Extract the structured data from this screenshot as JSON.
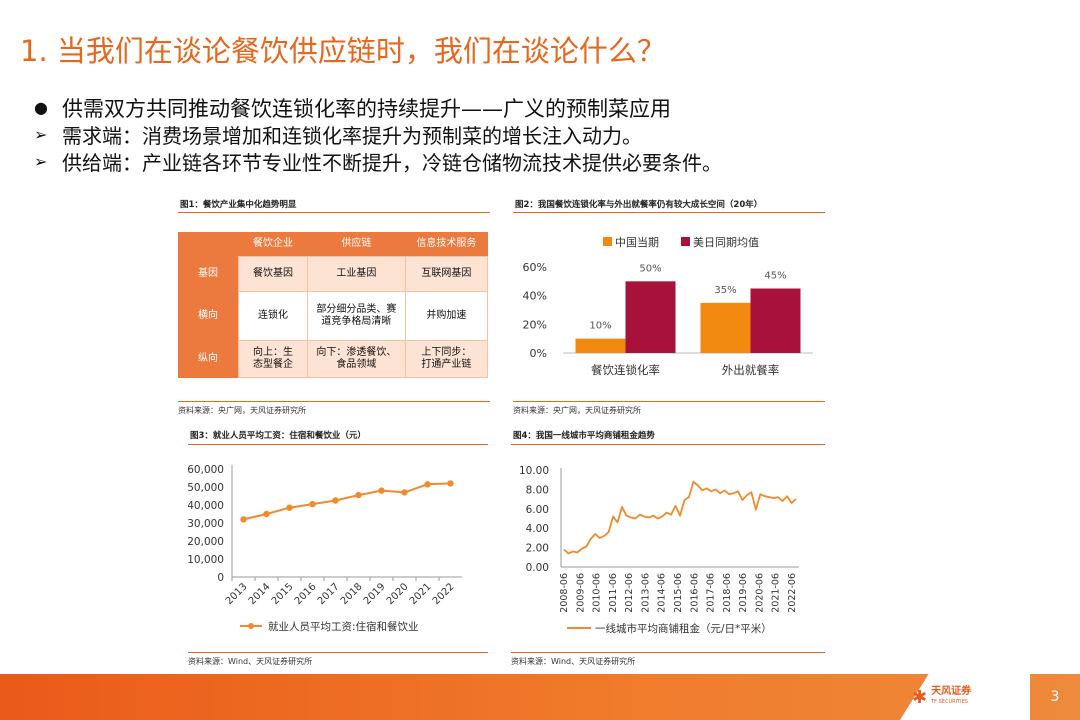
{
  "slide": {
    "title": "1. 当我们在谈论餐饮供应链时，我们在谈论什么？",
    "bullets": [
      {
        "mark": "●",
        "text": "供需双方共同推动餐饮连锁化率的持续提升——广义的预制菜应用"
      },
      {
        "mark": "➢",
        "text": "需求端：消费场景增加和连锁化率提升为预制菜的增长注入动力。"
      },
      {
        "mark": "➢",
        "text": "供给端：产业链各环节专业性不断提升，冷链仓储物流技术提供必要条件。"
      }
    ],
    "page_number": "3"
  },
  "fig1": {
    "title": "图1：餐饮产业集中化趋势明显",
    "source": "资料来源：央广网，天风证券研究所",
    "headers": [
      "",
      "餐饮企业",
      "供应链",
      "信息技术服务"
    ],
    "rows": [
      {
        "label": "基因",
        "cells": [
          "餐饮基因",
          "工业基因",
          "互联网基因"
        ]
      },
      {
        "label": "横向",
        "cells": [
          "连锁化",
          "部分细分品类、赛道竞争格局清晰",
          "并购加速"
        ]
      },
      {
        "label": "纵向",
        "cells": [
          "向上：生态型餐企",
          "向下：渗透餐饮、食品领域",
          "上下同步：打通产业链"
        ]
      }
    ]
  },
  "fig2": {
    "title": "图2：我国餐饮连锁化率与外出就餐率仍有较大成长空间（20年）",
    "source": "资料来源：央广网，天风证券研究所"
  },
  "fig3": {
    "title": "图3：就业人员平均工资：住宿和餐饮业（元）",
    "source": "资料来源：Wind、天风证券研究所"
  },
  "fig4": {
    "title": "图4：我国一线城市平均商铺租金趋势",
    "source": "资料来源：Wind、天风证券研究所"
  },
  "brand": {
    "name_cn": "天风证券",
    "name_en": "TF SECURITIES"
  },
  "colors": {
    "accent": "#e8671c",
    "series_orange": "#f28a12",
    "series_red": "#a8123a"
  },
  "chart_data": [
    {
      "type": "bar",
      "categories": [
        "餐饮连锁化率",
        "外出就餐率"
      ],
      "series": [
        {
          "name": "中国当期",
          "values": [
            10,
            35
          ]
        },
        {
          "name": "美日同期均值",
          "values": [
            50,
            45
          ]
        }
      ],
      "value_labels": [
        "10%",
        "50%",
        "35%",
        "45%"
      ],
      "yticks": [
        "0%",
        "20%",
        "40%",
        "60%"
      ],
      "ylim": [
        0,
        60
      ],
      "legend": "top"
    },
    {
      "type": "line",
      "x": [
        "2013",
        "2014",
        "2015",
        "2016",
        "2017",
        "2018",
        "2019",
        "2020",
        "2021",
        "2022"
      ],
      "series": [
        {
          "name": "就业人员平均工资:住宿和餐饮业",
          "values": [
            32000,
            35000,
            38500,
            40500,
            42500,
            45500,
            48000,
            47000,
            51500,
            52000
          ]
        }
      ],
      "yticks": [
        "0",
        "10,000",
        "20,000",
        "30,000",
        "40,000",
        "50,000",
        "60,000"
      ],
      "ylim": [
        0,
        60000
      ],
      "legend": "bottom"
    },
    {
      "type": "line",
      "x_ticks": [
        "2008-06",
        "2009-06",
        "2010-06",
        "2011-06",
        "2012-06",
        "2013-06",
        "2014-06",
        "2015-06",
        "2016-06",
        "2017-06",
        "2018-06",
        "2019-06",
        "2020-06",
        "2021-06",
        "2022-06"
      ],
      "series": [
        {
          "name": "一线城市平均商铺租金（元/日*平米）",
          "values": [
            1.8,
            1.4,
            1.6,
            1.5,
            1.9,
            2.1,
            2.9,
            3.4,
            3.0,
            3.2,
            3.6,
            5.2,
            4.6,
            6.2,
            5.3,
            5.1,
            5.0,
            5.4,
            5.2,
            5.1,
            5.3,
            5.0,
            5.2,
            5.6,
            5.4,
            6.3,
            5.3,
            6.9,
            7.2,
            8.8,
            8.4,
            7.9,
            8.1,
            7.8,
            8.0,
            7.6,
            7.9,
            7.5,
            7.6,
            7.8,
            6.9,
            7.4,
            7.7,
            5.9,
            7.5,
            7.3,
            7.2,
            7.1,
            7.2,
            6.8,
            7.3,
            6.6,
            7.0
          ]
        }
      ],
      "yticks": [
        "0.00",
        "2.00",
        "4.00",
        "6.00",
        "8.00",
        "10.00"
      ],
      "ylim": [
        0,
        10
      ],
      "legend": "bottom"
    }
  ]
}
